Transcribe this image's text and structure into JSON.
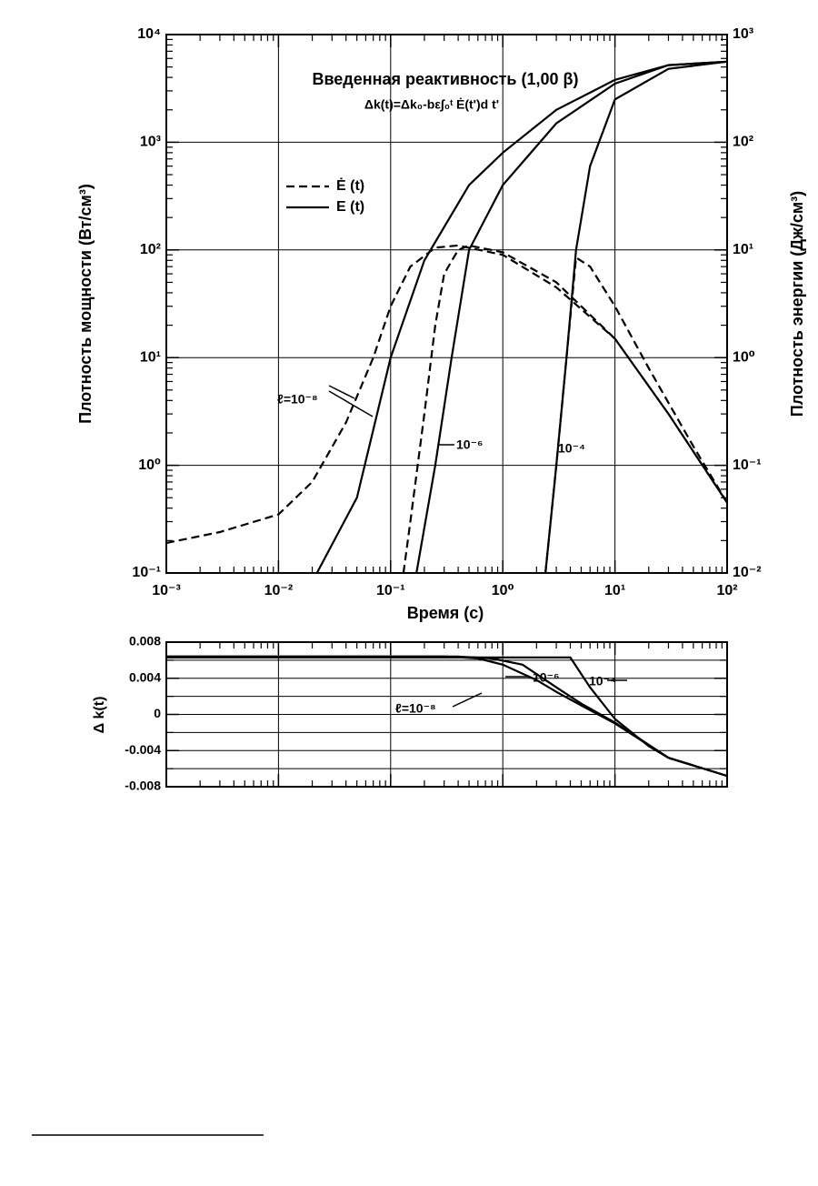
{
  "chart_data": [
    {
      "type": "line",
      "title": "Введенная реактивность (1,00 β)",
      "subtitle": "Δk(t)=Δk₀-bε∫₀ᵗ Ė(t')d t'",
      "x_label": "Время (с)",
      "y_label": "Плотность мощности (Вт/см³)",
      "y2_label": "Плотность энергии (Дж/см³)",
      "xscale": "log",
      "yscale": "log",
      "grid": true,
      "xlim": [
        0.001,
        100
      ],
      "xticks": [
        {
          "value": 0.001,
          "label": "10⁻³"
        },
        {
          "value": 0.01,
          "label": "10⁻²"
        },
        {
          "value": 0.1,
          "label": "10⁻¹"
        },
        {
          "value": 1,
          "label": "10⁰"
        },
        {
          "value": 10,
          "label": "10¹"
        },
        {
          "value": 100,
          "label": "10²"
        }
      ],
      "ylim": [
        0.1,
        10000
      ],
      "yticks": [
        {
          "value": 0.1,
          "label": "10⁻¹"
        },
        {
          "value": 1,
          "label": "10⁰"
        },
        {
          "value": 10,
          "label": "10¹"
        },
        {
          "value": 100,
          "label": "10²"
        },
        {
          "value": 1000,
          "label": "10³"
        },
        {
          "value": 10000,
          "label": "10⁴"
        }
      ],
      "y2lim": [
        0.01,
        1000
      ],
      "y2ticks": [
        {
          "value": 0.01,
          "label": "10⁻²"
        },
        {
          "value": 0.1,
          "label": "10⁻¹"
        },
        {
          "value": 1,
          "label": "10⁰"
        },
        {
          "value": 10,
          "label": "10¹"
        },
        {
          "value": 100,
          "label": "10²"
        },
        {
          "value": 1000,
          "label": "10³"
        }
      ],
      "legend": [
        {
          "name": "Ė (t)",
          "dash": true
        },
        {
          "name": "E (t)",
          "dash": false
        }
      ],
      "annotations": [
        "ℓ=10⁻⁸",
        "10⁻⁶",
        "10⁻⁴"
      ],
      "series": [
        {
          "color": "#000000",
          "dash": true,
          "x": [
            0.001,
            0.003,
            0.01,
            0.02,
            0.04,
            0.07,
            0.1,
            0.15,
            0.25,
            0.4,
            1,
            3,
            10,
            30,
            100
          ],
          "values": [
            0.19,
            0.24,
            0.35,
            0.7,
            2.5,
            10,
            30,
            70,
            105,
            110,
            90,
            45,
            15,
            3,
            0.45
          ]
        },
        {
          "color": "#000000",
          "dash": true,
          "x": [
            0.13,
            0.15,
            0.2,
            0.25,
            0.3,
            0.4,
            0.5,
            1,
            3,
            10,
            30,
            100
          ],
          "values": [
            0.1,
            0.3,
            3,
            20,
            60,
            100,
            110,
            95,
            50,
            15,
            3,
            0.45
          ]
        },
        {
          "color": "#000000",
          "dash": true,
          "x": [
            2.4,
            3,
            3.7,
            4.5,
            6,
            10,
            20,
            50,
            100
          ],
          "values": [
            0.1,
            1,
            10,
            85,
            70,
            30,
            8,
            1.5,
            0.45
          ]
        },
        {
          "color": "#000000",
          "dash": false,
          "axis": "y2",
          "x": [
            0.022,
            0.05,
            0.1,
            0.2,
            0.5,
            1,
            3,
            10,
            30,
            100
          ],
          "values": [
            0.01,
            0.05,
            1,
            8,
            40,
            80,
            200,
            380,
            520,
            560
          ]
        },
        {
          "color": "#000000",
          "dash": false,
          "axis": "y2",
          "x": [
            0.17,
            0.25,
            0.35,
            0.5,
            1,
            3,
            10,
            30,
            100
          ],
          "values": [
            0.01,
            0.1,
            1,
            10,
            40,
            150,
            350,
            520,
            560
          ]
        },
        {
          "color": "#000000",
          "dash": false,
          "axis": "y2",
          "x": [
            2.4,
            3,
            3.7,
            4.5,
            6,
            10,
            30,
            100
          ],
          "values": [
            0.01,
            0.1,
            1,
            10,
            60,
            250,
            480,
            560
          ]
        }
      ]
    },
    {
      "type": "line",
      "y_label": "Δ k(t)",
      "xscale": "log",
      "grid": true,
      "xlim": [
        0.001,
        100
      ],
      "xticks": [
        0.001,
        0.01,
        0.1,
        1,
        10,
        100
      ],
      "ylim": [
        -0.008,
        0.008
      ],
      "yticks": [
        0.008,
        0.004,
        0,
        -0.004,
        -0.008
      ],
      "minor_yticks": [
        0.006,
        0.002,
        -0.002,
        -0.006
      ],
      "annotations": [
        "ℓ=10⁻⁸",
        "10⁻⁶",
        "10⁻⁴"
      ],
      "series": [
        {
          "color": "#000000",
          "x": [
            0.001,
            0.1,
            0.3,
            0.6,
            1,
            2,
            3,
            5,
            10,
            30,
            100
          ],
          "values": [
            0.0064,
            0.0064,
            0.0064,
            0.0062,
            0.0055,
            0.0038,
            0.0025,
            0.001,
            -0.001,
            -0.0048,
            -0.0068
          ]
        },
        {
          "color": "#000000",
          "x": [
            0.001,
            0.1,
            0.4,
            0.8,
            1.5,
            3,
            5,
            10,
            30,
            100
          ],
          "values": [
            0.0064,
            0.0064,
            0.0064,
            0.0062,
            0.0055,
            0.003,
            0.0012,
            -0.0009,
            -0.0048,
            -0.0068
          ]
        },
        {
          "color": "#000000",
          "x": [
            0.001,
            0.1,
            1,
            4,
            6,
            10,
            20,
            30,
            100
          ],
          "values": [
            0.0063,
            0.0063,
            0.0063,
            0.0063,
            0.003,
            -0.0005,
            -0.0035,
            -0.0048,
            -0.0068
          ]
        }
      ]
    }
  ]
}
